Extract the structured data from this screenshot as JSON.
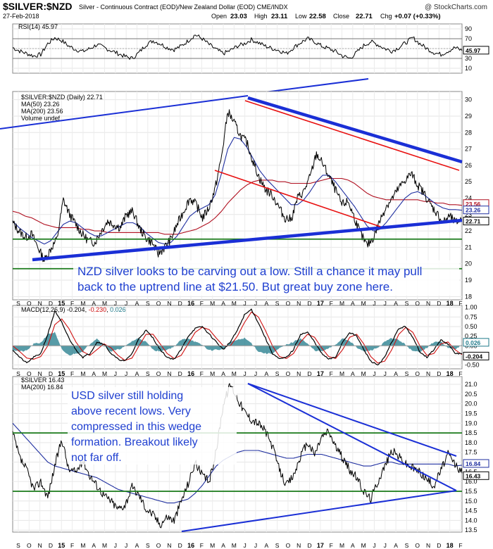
{
  "header": {
    "symbol": "$SILVER:$NZD",
    "description": "Silver - Continuous Contract (EOD)/New Zealand Dollar (EOD) CME/INDX",
    "watermark": "@ StockCharts.com",
    "date": "27-Feb-2018",
    "open_label": "Open",
    "open": "23.03",
    "high_label": "High",
    "high": "23.11",
    "low_label": "Low",
    "low": "22.58",
    "close_label": "Close",
    "close": "22.71",
    "chg_label": "Chg",
    "chg": "+0.07 (+0.33%)"
  },
  "colors": {
    "price": "#000000",
    "ma50": "#1f2fa0",
    "ma200": "#b01020",
    "trend_blue": "#1a2fd6",
    "channel_red": "#e81010",
    "support_green": "#1a7a1a",
    "note_text": "#1f3fd0",
    "macd_hist": "#1f7a8a",
    "macd_signal": "#d01010"
  },
  "rsi_panel": {
    "label": "RSI(14) 45.97",
    "current_tag": "45.97",
    "ticks": [
      "90",
      "70",
      "50",
      "30",
      "10"
    ]
  },
  "nzd_panel": {
    "legend": [
      {
        "text": "$SILVER:$NZD (Daily) 22.71",
        "color": "#000000"
      },
      {
        "text": "MA(50) 23.26",
        "color": "#1f2fa0"
      },
      {
        "text": "MA(200) 23.56",
        "color": "#b01020"
      },
      {
        "text": "Volume undef",
        "color": "#000000"
      }
    ],
    "ticks": [
      "30",
      "29",
      "28",
      "27",
      "26",
      "25",
      "24",
      "23",
      "22",
      "21",
      "20",
      "19",
      "18"
    ],
    "tags": [
      {
        "text": "23.56",
        "color": "#b01020"
      },
      {
        "text": "23.26",
        "color": "#1f2fa0"
      },
      {
        "text": "22.71",
        "color": "#000000"
      }
    ],
    "note": [
      "NZD silver looks to be carving out a low. Still a chance it may pull",
      "back to the uptrend line at $21.50. But great buy zone here."
    ]
  },
  "macd_panel": {
    "label_prefix": "MACD(12,26,9)",
    "macd": "-0.204",
    "signal": "-0.230",
    "hist": "0.026",
    "ticks": [
      "1.00",
      "0.75",
      "0.50",
      "0.25",
      "0.00",
      "-0.25",
      "-0.50"
    ],
    "tags": [
      {
        "text": "0.026",
        "color": "#1f7a8a"
      },
      {
        "text": "-0.204",
        "color": "#000000"
      }
    ]
  },
  "usd_panel": {
    "legend": [
      {
        "text": "$SILVER 16.43",
        "color": "#000000"
      },
      {
        "text": "MA(200) 16.84",
        "color": "#1f2fa0"
      }
    ],
    "ticks": [
      "21.0",
      "20.5",
      "20.0",
      "19.5",
      "19.0",
      "18.5",
      "18.0",
      "17.5",
      "17.0",
      "16.5",
      "16.0",
      "15.5",
      "15.0",
      "14.5",
      "14.0",
      "13.5"
    ],
    "tags": [
      {
        "text": "16.84",
        "color": "#1f2fa0"
      },
      {
        "text": "16.43",
        "color": "#000000"
      }
    ],
    "note": [
      "USD silver still holding",
      "above recent lows. Very",
      "compressed in this wedge",
      "formation. Breakout likely",
      "not far off."
    ]
  },
  "time_axis": {
    "labels": [
      "S",
      "O",
      "N",
      "D",
      "15",
      "F",
      "M",
      "A",
      "M",
      "J",
      "J",
      "A",
      "S",
      "O",
      "N",
      "D",
      "16",
      "F",
      "M",
      "A",
      "M",
      "J",
      "J",
      "A",
      "S",
      "O",
      "N",
      "D",
      "17",
      "F",
      "M",
      "A",
      "M",
      "J",
      "J",
      "A",
      "S",
      "O",
      "N",
      "D",
      "18",
      "F"
    ],
    "years": [
      "15",
      "16",
      "17",
      "18"
    ]
  },
  "chart_data": [
    {
      "type": "line",
      "title": "RSI(14) 45.97",
      "series": [
        {
          "name": "RSI(14)",
          "values": [
            52,
            45,
            40,
            35,
            38,
            60,
            72,
            66,
            55,
            48,
            44,
            50,
            58,
            52,
            46,
            40,
            34,
            30,
            42,
            58,
            66,
            60,
            52,
            48,
            55,
            66,
            78,
            70,
            58,
            48,
            40,
            46,
            55,
            60,
            68,
            62,
            55,
            50,
            46,
            40,
            52,
            62,
            70,
            64,
            55,
            50,
            44,
            35,
            30,
            42,
            56,
            64,
            58,
            50,
            45,
            52,
            62,
            72,
            60,
            50,
            42,
            38,
            45,
            52,
            46
          ]
        }
      ],
      "ylim": [
        0,
        100
      ],
      "reference_lines": [
        70,
        50,
        30
      ]
    },
    {
      "type": "line",
      "title": "$SILVER:$NZD (Daily) 22.71",
      "series": [
        {
          "name": "$SILVER:$NZD (Daily)",
          "values": [
            22.5,
            22.0,
            21.6,
            21.8,
            21.0,
            20.2,
            20.9,
            21.5,
            23.9,
            23.0,
            22.4,
            21.8,
            21.4,
            21.3,
            22.0,
            22.6,
            22.4,
            22.2,
            23.0,
            23.2,
            22.2,
            21.6,
            21.3,
            20.6,
            21.0,
            21.5,
            22.4,
            23.2,
            24.0,
            23.6,
            22.8,
            23.4,
            24.6,
            26.5,
            29.3,
            28.6,
            27.8,
            27.4,
            26.2,
            25.2,
            24.5,
            24.2,
            23.5,
            22.8,
            22.7,
            24.0,
            24.4,
            25.3,
            26.7,
            26.1,
            25.3,
            24.5,
            23.6,
            23.8,
            22.8,
            21.8,
            21.1,
            21.6,
            22.6,
            23.5,
            24.0,
            24.6,
            25.1,
            25.5,
            24.8,
            24.3,
            23.6,
            23.1,
            22.5,
            22.9,
            22.5,
            22.71
          ]
        },
        {
          "name": "MA(50)",
          "values": [
            22.6,
            22.2,
            21.9,
            21.6,
            21.4,
            21.2,
            21.4,
            21.9,
            22.4,
            22.6,
            22.5,
            22.2,
            21.9,
            21.7,
            21.7,
            21.9,
            22.1,
            22.3,
            22.5,
            22.5,
            22.3,
            21.9,
            21.6,
            21.3,
            21.2,
            21.3,
            21.7,
            22.3,
            22.9,
            23.2,
            23.4,
            23.6,
            24.2,
            25.5,
            27.0,
            27.7,
            27.6,
            27.1,
            26.4,
            25.7,
            25.2,
            24.8,
            24.4,
            24.0,
            23.6,
            23.6,
            23.9,
            24.4,
            25.0,
            25.4,
            25.4,
            25.0,
            24.5,
            24.0,
            23.5,
            22.9,
            22.3,
            22.0,
            22.1,
            22.5,
            23.0,
            23.5,
            24.0,
            24.3,
            24.4,
            24.2,
            23.9,
            23.6,
            23.4,
            23.3,
            23.3,
            23.26
          ]
        },
        {
          "name": "MA(200)",
          "values": [
            23.2,
            23.1,
            22.9,
            22.8,
            22.6,
            22.4,
            22.3,
            22.2,
            22.2,
            22.2,
            22.2,
            22.1,
            22.1,
            22.0,
            22.0,
            21.9,
            21.9,
            21.9,
            21.9,
            21.9,
            21.9,
            21.9,
            21.9,
            21.9,
            21.8,
            21.8,
            21.8,
            21.9,
            22.0,
            22.1,
            22.3,
            22.5,
            22.8,
            23.2,
            23.7,
            24.1,
            24.5,
            24.8,
            25.0,
            25.1,
            25.1,
            25.1,
            25.0,
            25.0,
            24.9,
            24.9,
            24.9,
            24.9,
            25.0,
            25.1,
            25.2,
            25.2,
            25.2,
            25.1,
            24.9,
            24.6,
            24.3,
            24.1,
            24.0,
            23.9,
            23.9,
            23.9,
            23.9,
            23.9,
            23.9,
            23.8,
            23.8,
            23.7,
            23.7,
            23.6,
            23.6,
            23.56
          ]
        }
      ],
      "ylim": [
        17.8,
        30.5
      ]
    },
    {
      "type": "line",
      "title": "MACD(12,26,9) -0.204, -0.230, 0.026",
      "series": [
        {
          "name": "MACD",
          "values": [
            -0.1,
            -0.3,
            -0.45,
            -0.3,
            -0.2,
            0.3,
            0.9,
            0.6,
            0.2,
            -0.1,
            -0.3,
            -0.2,
            0.1,
            0.05,
            -0.2,
            -0.35,
            -0.4,
            -0.2,
            0.2,
            0.4,
            0.2,
            -0.1,
            -0.3,
            -0.35,
            -0.1,
            0.25,
            0.45,
            0.5,
            0.3,
            0.1,
            -0.1,
            0.1,
            0.4,
            0.8,
            0.95,
            0.6,
            0.2,
            -0.2,
            -0.35,
            -0.3,
            -0.1,
            0.3,
            0.35,
            0.1,
            -0.2,
            -0.35,
            -0.3,
            0.1,
            0.35,
            0.25,
            -0.1,
            -0.4,
            -0.5,
            -0.3,
            0.1,
            0.45,
            0.5,
            0.2,
            -0.15,
            -0.3,
            -0.1,
            0.15,
            0.05,
            -0.2,
            -0.204
          ]
        },
        {
          "name": "Signal",
          "values": [
            0.0,
            -0.15,
            -0.32,
            -0.35,
            -0.28,
            0.0,
            0.55,
            0.7,
            0.45,
            0.1,
            -0.15,
            -0.25,
            -0.1,
            0.05,
            -0.05,
            -0.25,
            -0.38,
            -0.32,
            0.0,
            0.3,
            0.3,
            0.05,
            -0.2,
            -0.33,
            -0.25,
            0.05,
            0.35,
            0.48,
            0.42,
            0.2,
            0.0,
            0.0,
            0.25,
            0.6,
            0.88,
            0.75,
            0.4,
            0.0,
            -0.28,
            -0.33,
            -0.2,
            0.1,
            0.3,
            0.22,
            -0.05,
            -0.28,
            -0.33,
            -0.1,
            0.22,
            0.3,
            0.05,
            -0.28,
            -0.45,
            -0.4,
            -0.1,
            0.3,
            0.48,
            0.35,
            0.0,
            -0.25,
            -0.2,
            0.05,
            0.1,
            -0.1,
            -0.23
          ]
        }
      ],
      "ylim": [
        -0.6,
        1.05
      ]
    },
    {
      "type": "line",
      "title": "$SILVER 16.43",
      "series": [
        {
          "name": "$SILVER",
          "values": [
            18.5,
            17.2,
            16.6,
            15.6,
            16.0,
            15.2,
            16.8,
            18.2,
            16.6,
            16.5,
            17.1,
            16.3,
            15.8,
            15.3,
            15.0,
            14.6,
            14.8,
            15.7,
            15.3,
            14.6,
            14.3,
            13.8,
            14.2,
            14.0,
            15.0,
            15.9,
            17.0,
            16.3,
            16.0,
            17.6,
            20.0,
            21.0,
            20.3,
            19.6,
            19.2,
            19.0,
            18.6,
            17.8,
            16.6,
            15.8,
            16.3,
            17.3,
            18.0,
            17.4,
            18.3,
            18.6,
            17.8,
            17.2,
            16.6,
            16.2,
            15.5,
            15.1,
            16.0,
            16.8,
            17.6,
            17.3,
            16.9,
            16.7,
            16.5,
            16.1,
            15.8,
            16.6,
            17.4,
            16.9,
            16.43
          ]
        },
        {
          "name": "MA(200)",
          "values": [
            19.0,
            18.6,
            18.2,
            17.8,
            17.4,
            17.0,
            16.8,
            16.7,
            16.6,
            16.5,
            16.4,
            16.3,
            16.2,
            16.0,
            15.8,
            15.6,
            15.5,
            15.4,
            15.3,
            15.2,
            15.1,
            15.0,
            14.9,
            14.9,
            15.0,
            15.1,
            15.4,
            15.8,
            16.3,
            16.8,
            17.1,
            17.3,
            17.5,
            17.6,
            17.6,
            17.6,
            17.5,
            17.4,
            17.3,
            17.2,
            17.2,
            17.3,
            17.4,
            17.4,
            17.4,
            17.3,
            17.2,
            17.1,
            17.0,
            16.9,
            16.8,
            16.8,
            16.9,
            17.0,
            17.0,
            16.9,
            16.9,
            16.9,
            16.9,
            16.9,
            16.9,
            16.9,
            16.9,
            16.8,
            16.84
          ]
        }
      ],
      "ylim": [
        13.4,
        21.4
      ]
    }
  ]
}
